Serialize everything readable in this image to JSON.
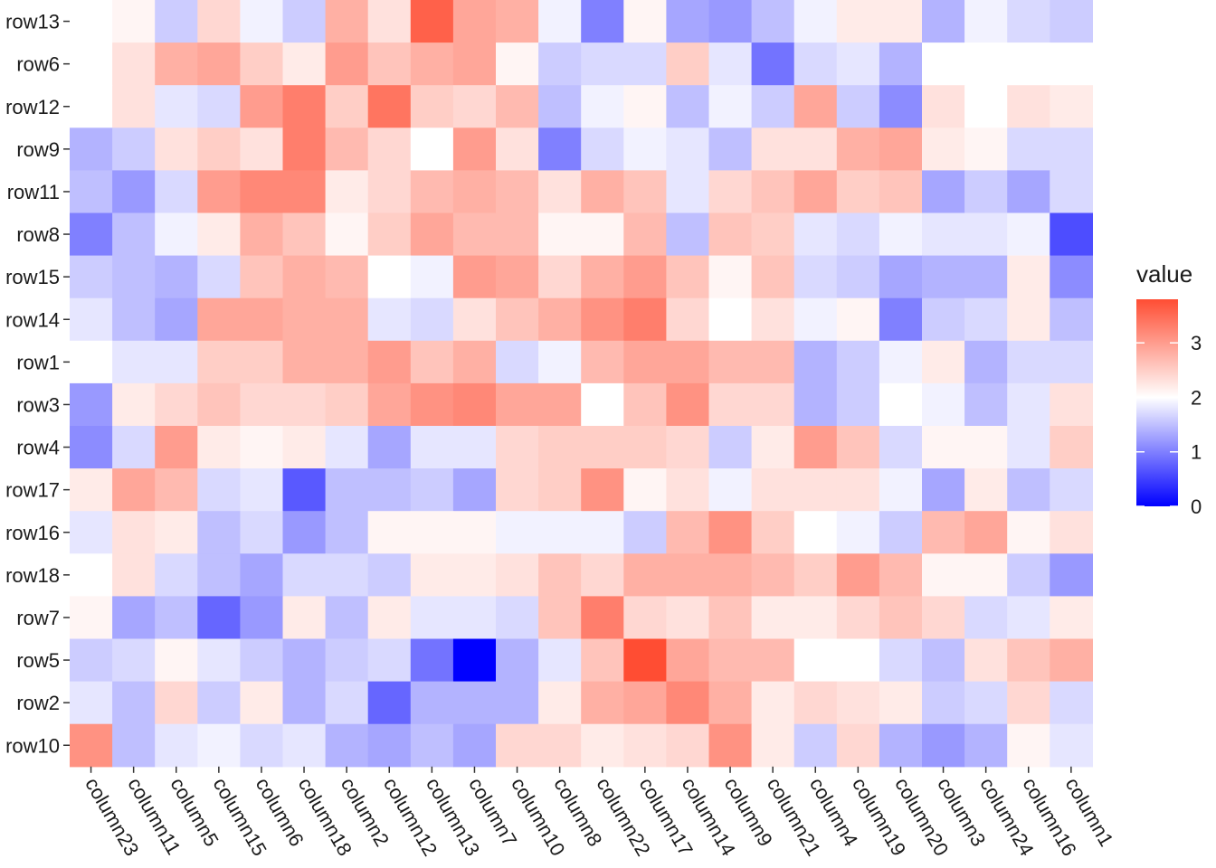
{
  "chart_data": {
    "type": "heatmap",
    "rows": [
      "row13",
      "row6",
      "row12",
      "row9",
      "row11",
      "row8",
      "row15",
      "row14",
      "row1",
      "row3",
      "row4",
      "row17",
      "row16",
      "row18",
      "row7",
      "row5",
      "row2",
      "row10"
    ],
    "columns": [
      "column23",
      "column11",
      "column5",
      "column15",
      "column6",
      "column18",
      "column2",
      "column12",
      "column13",
      "column7",
      "column10",
      "column8",
      "column22",
      "column17",
      "column14",
      "column9",
      "column21",
      "column4",
      "column19",
      "column20",
      "column3",
      "column24",
      "column16",
      "column1"
    ],
    "values": [
      [
        2.0,
        2.1,
        1.6,
        2.4,
        1.9,
        1.6,
        2.8,
        2.3,
        3.6,
        2.9,
        2.8,
        1.9,
        1.0,
        2.1,
        1.3,
        1.2,
        1.5,
        1.9,
        2.2,
        2.2,
        1.4,
        1.9,
        1.7,
        1.6
      ],
      [
        2.0,
        2.3,
        2.8,
        2.9,
        2.5,
        2.2,
        3.0,
        2.6,
        2.8,
        2.9,
        2.1,
        1.6,
        1.7,
        1.7,
        2.5,
        1.8,
        0.9,
        1.7,
        1.8,
        1.4,
        2.0,
        2.0,
        2.0,
        2.0
      ],
      [
        2.0,
        2.3,
        1.8,
        1.7,
        3.0,
        3.3,
        2.5,
        3.4,
        2.5,
        2.4,
        2.7,
        1.5,
        1.9,
        2.1,
        1.5,
        1.9,
        1.6,
        2.9,
        1.6,
        1.1,
        2.3,
        2.0,
        2.3,
        2.2
      ],
      [
        1.4,
        1.6,
        2.3,
        2.5,
        2.3,
        3.3,
        2.7,
        2.4,
        2.0,
        3.0,
        2.3,
        1.0,
        1.7,
        1.9,
        1.8,
        1.5,
        2.3,
        2.3,
        2.8,
        2.9,
        2.2,
        2.1,
        1.7,
        1.7
      ],
      [
        1.5,
        1.2,
        1.7,
        3.0,
        3.2,
        3.2,
        2.2,
        2.4,
        2.7,
        2.8,
        2.7,
        2.3,
        2.8,
        2.6,
        1.8,
        2.4,
        2.6,
        2.9,
        2.5,
        2.6,
        1.3,
        1.6,
        1.3,
        1.7
      ],
      [
        1.0,
        1.5,
        1.9,
        2.2,
        2.8,
        2.6,
        2.1,
        2.5,
        2.9,
        2.7,
        2.7,
        2.1,
        2.1,
        2.7,
        1.5,
        2.6,
        2.5,
        1.8,
        1.7,
        1.9,
        1.8,
        1.8,
        1.9,
        0.6
      ],
      [
        1.6,
        1.5,
        1.4,
        1.7,
        2.6,
        2.8,
        2.7,
        2.0,
        1.9,
        3.0,
        2.9,
        2.4,
        2.8,
        3.0,
        2.6,
        2.1,
        2.6,
        1.7,
        1.6,
        1.3,
        1.4,
        1.4,
        2.2,
        1.1
      ],
      [
        1.8,
        1.5,
        1.3,
        2.9,
        2.9,
        2.8,
        2.8,
        1.8,
        1.7,
        2.3,
        2.6,
        2.8,
        3.1,
        3.3,
        2.4,
        2.0,
        2.3,
        1.9,
        2.1,
        1.0,
        1.6,
        1.7,
        2.2,
        1.5
      ],
      [
        2.0,
        1.8,
        1.8,
        2.5,
        2.5,
        2.8,
        2.8,
        3.0,
        2.6,
        2.8,
        1.7,
        1.9,
        2.7,
        2.9,
        2.9,
        2.7,
        2.7,
        1.4,
        1.6,
        1.9,
        2.2,
        1.4,
        1.7,
        1.7
      ],
      [
        1.2,
        2.2,
        2.4,
        2.6,
        2.4,
        2.4,
        2.5,
        2.9,
        3.1,
        3.2,
        2.9,
        2.9,
        2.0,
        2.6,
        3.1,
        2.4,
        2.4,
        1.4,
        1.6,
        2.0,
        1.9,
        1.5,
        1.8,
        2.3
      ],
      [
        1.1,
        1.7,
        3.0,
        2.2,
        2.1,
        2.2,
        1.8,
        1.3,
        1.8,
        1.8,
        2.4,
        2.5,
        2.5,
        2.5,
        2.4,
        1.6,
        2.2,
        3.0,
        2.6,
        1.7,
        2.1,
        2.1,
        1.8,
        2.5
      ],
      [
        2.2,
        2.9,
        2.7,
        1.7,
        1.8,
        0.7,
        1.5,
        1.5,
        1.6,
        1.3,
        2.4,
        2.5,
        3.1,
        2.1,
        2.3,
        1.9,
        2.3,
        2.3,
        2.3,
        1.9,
        1.3,
        2.2,
        1.5,
        1.7
      ],
      [
        1.8,
        2.3,
        2.2,
        1.5,
        1.7,
        1.2,
        1.5,
        2.1,
        2.1,
        2.1,
        1.9,
        1.9,
        1.9,
        1.6,
        2.7,
        3.1,
        2.5,
        2.0,
        1.9,
        1.6,
        2.7,
        2.9,
        2.1,
        2.3
      ],
      [
        2.0,
        2.3,
        1.7,
        1.5,
        1.3,
        1.7,
        1.7,
        1.6,
        2.2,
        2.2,
        2.3,
        2.6,
        2.4,
        2.8,
        2.8,
        2.8,
        2.7,
        2.5,
        3.0,
        2.7,
        2.1,
        2.1,
        1.6,
        1.2
      ],
      [
        2.1,
        1.3,
        1.5,
        0.8,
        1.2,
        2.2,
        1.5,
        2.2,
        1.8,
        1.8,
        1.7,
        2.6,
        3.3,
        2.4,
        2.3,
        2.6,
        2.2,
        2.2,
        2.4,
        2.6,
        2.4,
        1.7,
        1.8,
        2.2
      ],
      [
        1.6,
        1.7,
        2.1,
        1.8,
        1.6,
        1.4,
        1.6,
        1.7,
        0.9,
        0.0,
        1.4,
        1.8,
        2.6,
        3.8,
        2.9,
        2.7,
        2.7,
        2.0,
        2.0,
        1.7,
        1.5,
        2.3,
        2.6,
        2.8
      ],
      [
        1.8,
        1.5,
        2.4,
        1.6,
        2.2,
        1.4,
        1.7,
        0.8,
        1.4,
        1.4,
        1.4,
        2.2,
        2.8,
        2.9,
        3.2,
        2.8,
        2.2,
        2.4,
        2.3,
        2.2,
        1.6,
        1.7,
        2.4,
        1.7
      ],
      [
        3.1,
        1.5,
        1.8,
        1.9,
        1.7,
        1.8,
        1.4,
        1.3,
        1.5,
        1.3,
        2.4,
        2.4,
        2.2,
        2.3,
        2.4,
        3.1,
        2.2,
        1.6,
        2.4,
        1.4,
        1.2,
        1.4,
        2.1,
        1.8
      ]
    ],
    "scale": {
      "low_color": "#0000ff",
      "mid_color": "#ffffff",
      "high_color": "#ff4d33",
      "min": 0,
      "mid": 2,
      "max": 3.8
    },
    "legend": {
      "title": "value",
      "ticks": [
        "0",
        "1",
        "2",
        "3"
      ],
      "tick_values": [
        0,
        1,
        2,
        3
      ],
      "placement": "right"
    },
    "grid": false
  }
}
